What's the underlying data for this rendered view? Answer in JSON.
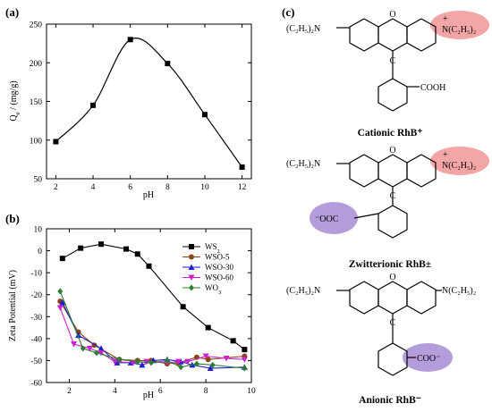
{
  "chart_data": [
    {
      "panel": "(a)",
      "type": "line",
      "xlabel": "pH",
      "ylabel": "Q_e / (mg/g)",
      "xlim": [
        1.5,
        12.5
      ],
      "ylim": [
        50,
        250
      ],
      "xticks": [
        2,
        4,
        6,
        8,
        10,
        12
      ],
      "yticks": [
        50,
        100,
        150,
        200,
        250
      ],
      "x": [
        2,
        4,
        6,
        8,
        10,
        12
      ],
      "values": [
        98,
        145,
        230,
        199,
        133,
        65
      ],
      "marker": "square",
      "color": "#000000",
      "grid": false
    },
    {
      "panel": "(b)",
      "type": "line",
      "xlabel": "pH",
      "ylabel": "Zeta Potential (mV)",
      "xlim": [
        1,
        10
      ],
      "ylim": [
        -60,
        10
      ],
      "xticks": [
        2,
        4,
        6,
        8,
        10
      ],
      "yticks": [
        10,
        0,
        -10,
        -20,
        -30,
        -40,
        -50,
        -60
      ],
      "legend_position": "top-right",
      "grid": false,
      "series": [
        {
          "name": "WS2",
          "color": "#000000",
          "marker": "square",
          "x": [
            1.7,
            2.5,
            3.4,
            4.5,
            5.0,
            5.5,
            7.0,
            8.1,
            9.2,
            9.7
          ],
          "y": [
            -3.5,
            1.2,
            3.0,
            0.8,
            -1.5,
            -7.0,
            -25.5,
            -35.0,
            -41.0,
            -45.0
          ]
        },
        {
          "name": "WSO-5",
          "color": "#8B4513",
          "marker": "circle",
          "x": [
            1.6,
            2.4,
            3.1,
            4.2,
            5.0,
            5.6,
            6.3,
            6.8,
            7.6,
            8.1,
            9.7
          ],
          "y": [
            -23.0,
            -37.0,
            -43.0,
            -49.5,
            -50.0,
            -50.0,
            -51.5,
            -51.0,
            -48.5,
            -49.5,
            -48.0
          ]
        },
        {
          "name": "WSO-30",
          "color": "#1F1FCC",
          "marker": "triangle-up",
          "x": [
            1.7,
            2.4,
            3.4,
            4.1,
            4.7,
            5.2,
            5.7,
            6.3,
            6.9,
            7.4,
            8.2,
            9.7
          ],
          "y": [
            -23.5,
            -38.5,
            -44.5,
            -51.0,
            -51.0,
            -52.0,
            -50.0,
            -49.5,
            -50.5,
            -52.0,
            -53.5,
            -53.0
          ]
        },
        {
          "name": "WSO-60",
          "color": "#CC22CC",
          "marker": "triangle-down",
          "x": [
            1.6,
            2.2,
            2.9,
            3.4,
            4.0,
            4.8,
            5.4,
            6.3,
            6.8,
            7.2,
            8.0,
            8.9,
            9.7
          ],
          "y": [
            -26.0,
            -42.5,
            -44.5,
            -46.5,
            -50.5,
            -51.0,
            -50.5,
            -51.0,
            -50.5,
            -50.5,
            -48.0,
            -49.0,
            -49.5
          ]
        },
        {
          "name": "WO3",
          "color": "#2E7D32",
          "marker": "diamond",
          "x": [
            1.6,
            2.6,
            3.2,
            4.2,
            5.0,
            5.6,
            6.3,
            6.9,
            7.6,
            8.3,
            9.7
          ],
          "y": [
            -18.5,
            -44.5,
            -46.5,
            -49.5,
            -50.5,
            -51.0,
            -50.0,
            -53.0,
            -51.5,
            -52.0,
            -53.5
          ]
        }
      ]
    }
  ],
  "panels": {
    "a_label": "(a)",
    "b_label": "(b)",
    "c_label": "(c)"
  },
  "axes_a": {
    "ylabel_main": "Q",
    "ylabel_sub": "e",
    "ylabel_rest": " / (mg/g)",
    "xlabel": "pH"
  },
  "axes_b": {
    "ylabel": "Zeta Potential (mV)",
    "xlabel": "pH"
  },
  "legend_b": [
    {
      "main": "WS",
      "sub": "2"
    },
    {
      "main": "WSO-5",
      "sub": ""
    },
    {
      "main": "WSO-30",
      "sub": ""
    },
    {
      "main": "WSO-60",
      "sub": ""
    },
    {
      "main": "WO",
      "sub": "3"
    }
  ],
  "structures": {
    "left_group": "(C₂H₅)₂N",
    "right_group_plus": "N(C₂H₅)₂",
    "right_group_neutral": "N(C₂H₅)₂",
    "plus_sign": "+",
    "ring_o": "O",
    "ring_c": "C",
    "carboxyl": "COOH",
    "carboxylate_left": "⁻OOC",
    "carboxylate_right": "COO⁻",
    "highlight_colors": {
      "cation": "#F4A6A6",
      "anion": "#B39DDB"
    },
    "captions": {
      "cationic": "Cationic  RhB⁺",
      "zwitterionic": "Zwitterionic  RhB±",
      "anionic": "Anionic  RhB⁻"
    }
  }
}
